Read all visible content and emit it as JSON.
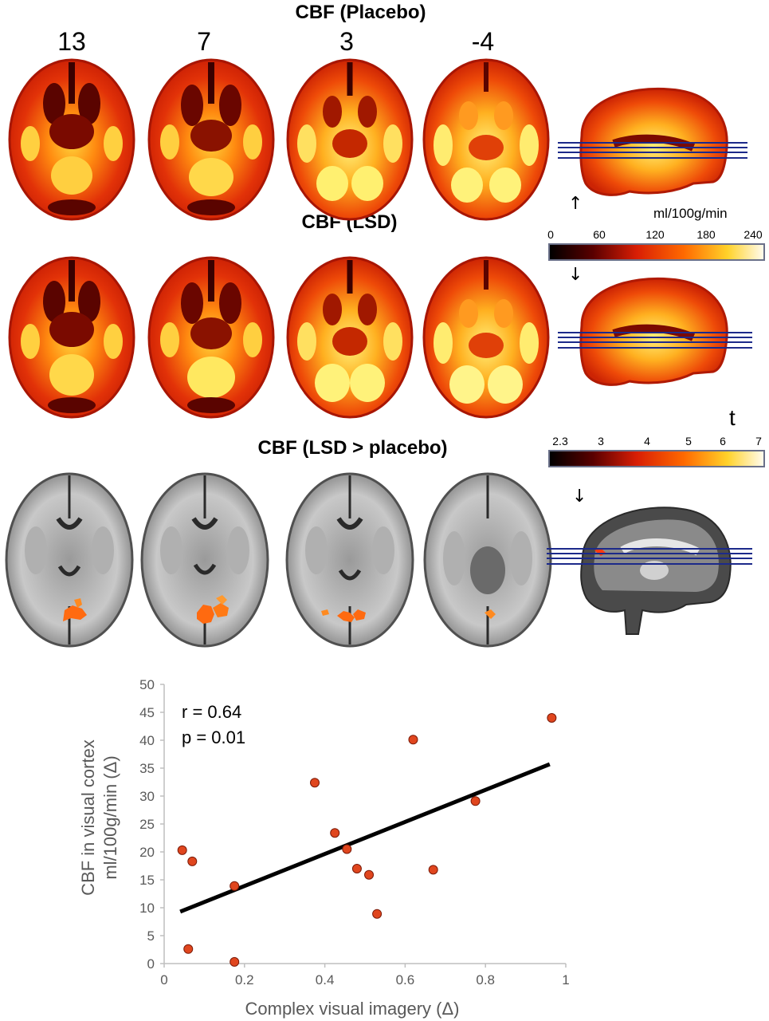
{
  "titles": {
    "placebo": "CBF (Placebo)",
    "lsd": "CBF (LSD)",
    "contrast": "CBF (LSD > placebo)"
  },
  "slice_labels": [
    "13",
    "7",
    "3",
    "-4"
  ],
  "colorbar_cbf": {
    "unit": "ml/100g/min",
    "ticks": [
      "0",
      "60",
      "120",
      "180",
      "240"
    ]
  },
  "colorbar_t": {
    "unit": "t",
    "ticks": [
      "2.3",
      "3",
      "4",
      "5",
      "6",
      "7"
    ]
  },
  "arrows": [
    "up-arrow-icon",
    "down-arrow-icon",
    "down-arrow-icon"
  ],
  "colors": {
    "heat_dark": "#2a0000",
    "heat_red": "#d81e05",
    "heat_orange": "#ff7a00",
    "heat_yellow": "#fff06a",
    "slice_line": "#1c2a8a",
    "point": "#e0461e",
    "axis_text": "#595959"
  },
  "chart_data": {
    "type": "scatter",
    "xlabel": "Complex visual imagery (Δ)",
    "ylabel_line1": "CBF in visual cortex",
    "ylabel_line2": "ml/100g/min (Δ)",
    "annotation_r": "r = 0.64",
    "annotation_p": "p = 0.01",
    "xlim": [
      0,
      1
    ],
    "ylim": [
      0,
      50
    ],
    "xticks": [
      "0",
      "0.2",
      "0.4",
      "0.6",
      "0.8",
      "1"
    ],
    "yticks": [
      "0",
      "5",
      "10",
      "15",
      "20",
      "25",
      "30",
      "35",
      "40",
      "45",
      "50"
    ],
    "points": [
      {
        "x": 0.045,
        "y": 20.3
      },
      {
        "x": 0.06,
        "y": 2.6
      },
      {
        "x": 0.07,
        "y": 18.3
      },
      {
        "x": 0.175,
        "y": 0.3
      },
      {
        "x": 0.175,
        "y": 13.9
      },
      {
        "x": 0.375,
        "y": 32.4
      },
      {
        "x": 0.425,
        "y": 23.4
      },
      {
        "x": 0.455,
        "y": 20.5
      },
      {
        "x": 0.48,
        "y": 17.0
      },
      {
        "x": 0.51,
        "y": 15.9
      },
      {
        "x": 0.53,
        "y": 8.9
      },
      {
        "x": 0.62,
        "y": 40.1
      },
      {
        "x": 0.67,
        "y": 16.8
      },
      {
        "x": 0.775,
        "y": 29.1
      },
      {
        "x": 0.965,
        "y": 44.0
      }
    ],
    "fit_line": {
      "x": [
        0.04,
        0.96
      ],
      "y": [
        9.3,
        35.7
      ]
    }
  }
}
